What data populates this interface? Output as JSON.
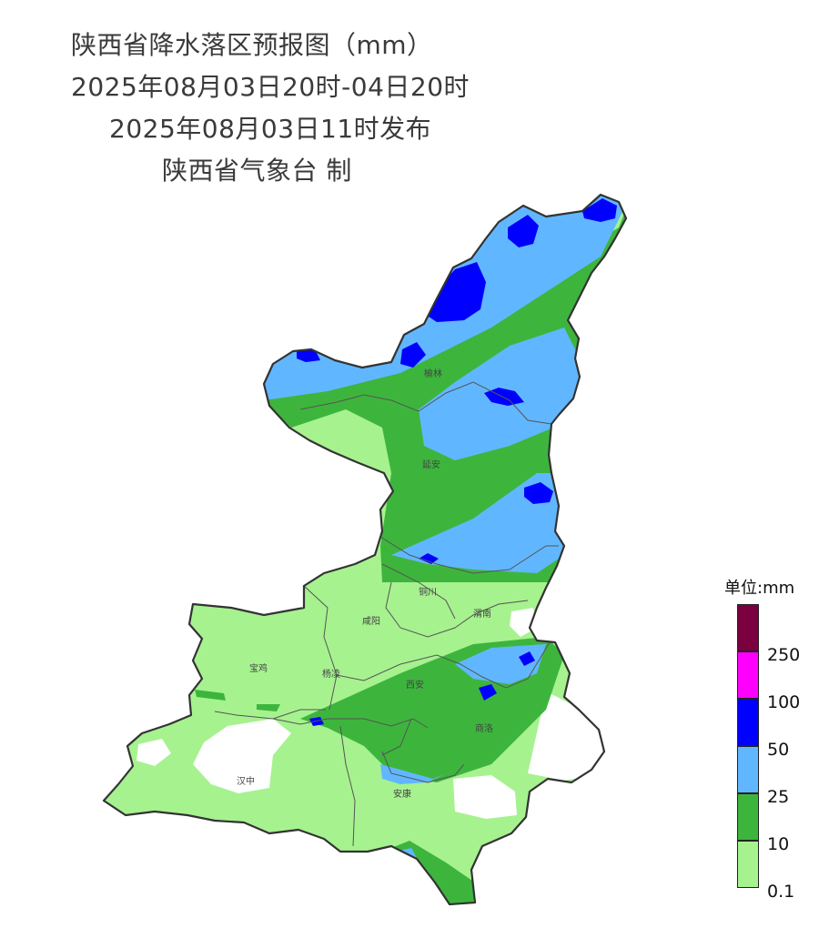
{
  "header": {
    "title": "陕西省降水落区预报图（mm）",
    "period": "2025年08月03日20时-04日20时",
    "issued": "2025年08月03日11时发布",
    "producer": "陕西省气象台 制"
  },
  "cities": [
    {
      "name": "榆林"
    },
    {
      "name": "延安"
    },
    {
      "name": "铜川"
    },
    {
      "name": "咸阳"
    },
    {
      "name": "渭南"
    },
    {
      "name": "宝鸡"
    },
    {
      "name": "杨凌"
    },
    {
      "name": "西安"
    },
    {
      "name": "商洛"
    },
    {
      "name": "汉中"
    },
    {
      "name": "安康"
    }
  ],
  "legend": {
    "title": "单位:mm",
    "levels": [
      {
        "label": "",
        "color": "#7a0040"
      },
      {
        "label": "250",
        "color": "#ff00ff"
      },
      {
        "label": "100",
        "color": "#0000ff"
      },
      {
        "label": "50",
        "color": "#61b7ff"
      },
      {
        "label": "25",
        "color": "#3db53d"
      },
      {
        "label": "10",
        "color": "#a6f28f"
      },
      {
        "label": "0.1",
        "color": ""
      }
    ]
  },
  "colors": {
    "rain_0_1": "#a6f28f",
    "rain_10": "#3db53d",
    "rain_25": "#61b7ff",
    "rain_50": "#0000ff",
    "boundary": "#333333"
  }
}
